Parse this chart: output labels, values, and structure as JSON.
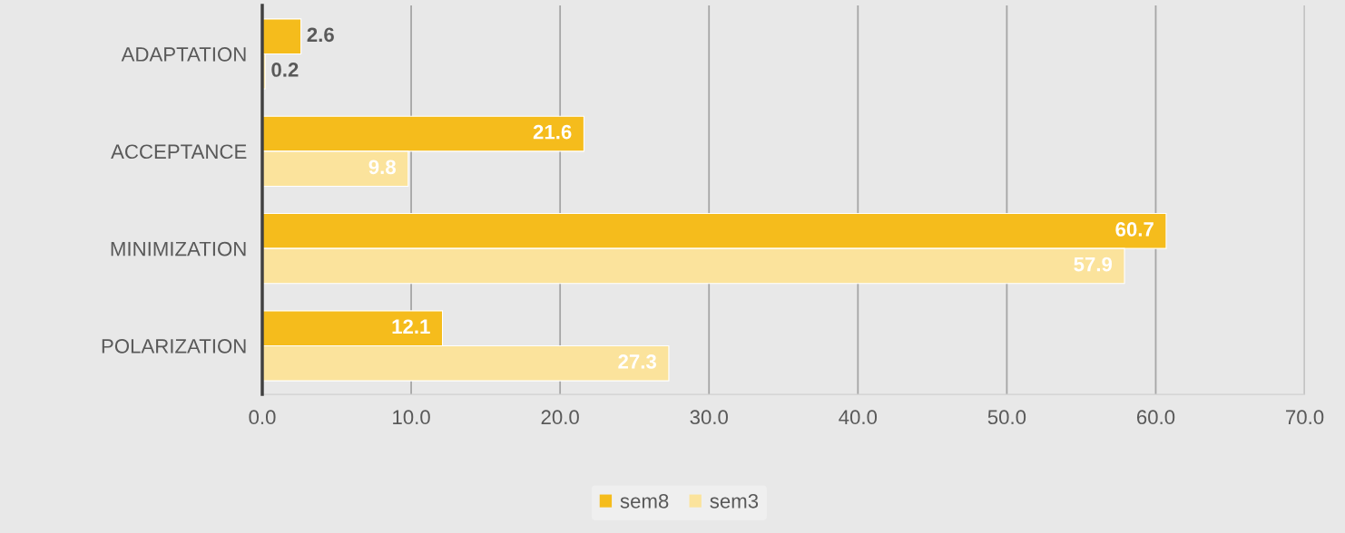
{
  "chart_data": {
    "type": "bar",
    "orientation": "horizontal",
    "categories": [
      "ADAPTATION",
      "ACCEPTANCE",
      "MINIMIZATION",
      "POLARIZATION"
    ],
    "series": [
      {
        "name": "sem8",
        "color": "#f5bc1c",
        "values": [
          2.6,
          21.6,
          60.7,
          12.1
        ]
      },
      {
        "name": "sem3",
        "color": "#fbe39c",
        "values": [
          0.2,
          9.8,
          57.9,
          27.3
        ]
      }
    ],
    "xlim": [
      0,
      70
    ],
    "xticks": [
      {
        "value": 0,
        "label": "0.0"
      },
      {
        "value": 10,
        "label": "10.0"
      },
      {
        "value": 20,
        "label": "20.0"
      },
      {
        "value": 30,
        "label": "30.0"
      },
      {
        "value": 40,
        "label": "40.0"
      },
      {
        "value": 50,
        "label": "50.0"
      },
      {
        "value": 60,
        "label": "60.0"
      },
      {
        "value": 70,
        "label": "70.0"
      }
    ],
    "grid": "x",
    "legend": "bottom",
    "data_labels": true
  }
}
